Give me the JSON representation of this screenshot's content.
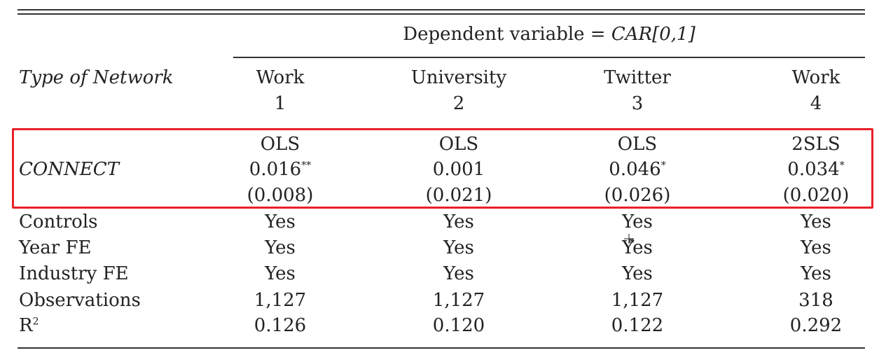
{
  "table": {
    "dependent_variable": "Dependent variable = ",
    "dependent_variable_italic": "CAR[0,1]",
    "row_header": "Type of Network",
    "columns": [
      {
        "network": "Work",
        "number": "1",
        "method": "OLS",
        "coef": "0.016",
        "stars": "**",
        "se": "(0.008)"
      },
      {
        "network": "University",
        "number": "2",
        "method": "OLS",
        "coef": "0.001",
        "stars": "",
        "se": "(0.021)"
      },
      {
        "network": "Twitter",
        "number": "3",
        "method": "OLS",
        "coef": "0.046",
        "stars": "*",
        "se": "(0.026)"
      },
      {
        "network": "Work",
        "number": "4",
        "method": "2SLS",
        "coef": "0.034",
        "stars": "*",
        "se": "(0.020)"
      }
    ],
    "connect_label": "CONNECT",
    "rows": [
      {
        "label": "Controls",
        "values": [
          "Yes",
          "Yes",
          "Yes",
          "Yes"
        ]
      },
      {
        "label": "Year FE",
        "values": [
          "Yes",
          "Yes",
          "Yes",
          "Yes"
        ]
      },
      {
        "label": "Industry FE",
        "values": [
          "Yes",
          "Yes",
          "Yes",
          "Yes"
        ]
      },
      {
        "label": "Observations",
        "values": [
          "1,127",
          "1,127",
          "1,127",
          "318"
        ]
      },
      {
        "label": "R",
        "label_sup": "2",
        "values": [
          "0.126",
          "0.120",
          "0.122",
          "0.292"
        ]
      }
    ]
  },
  "colors": {
    "highlight": "#e8202a",
    "rule": "#333333"
  }
}
